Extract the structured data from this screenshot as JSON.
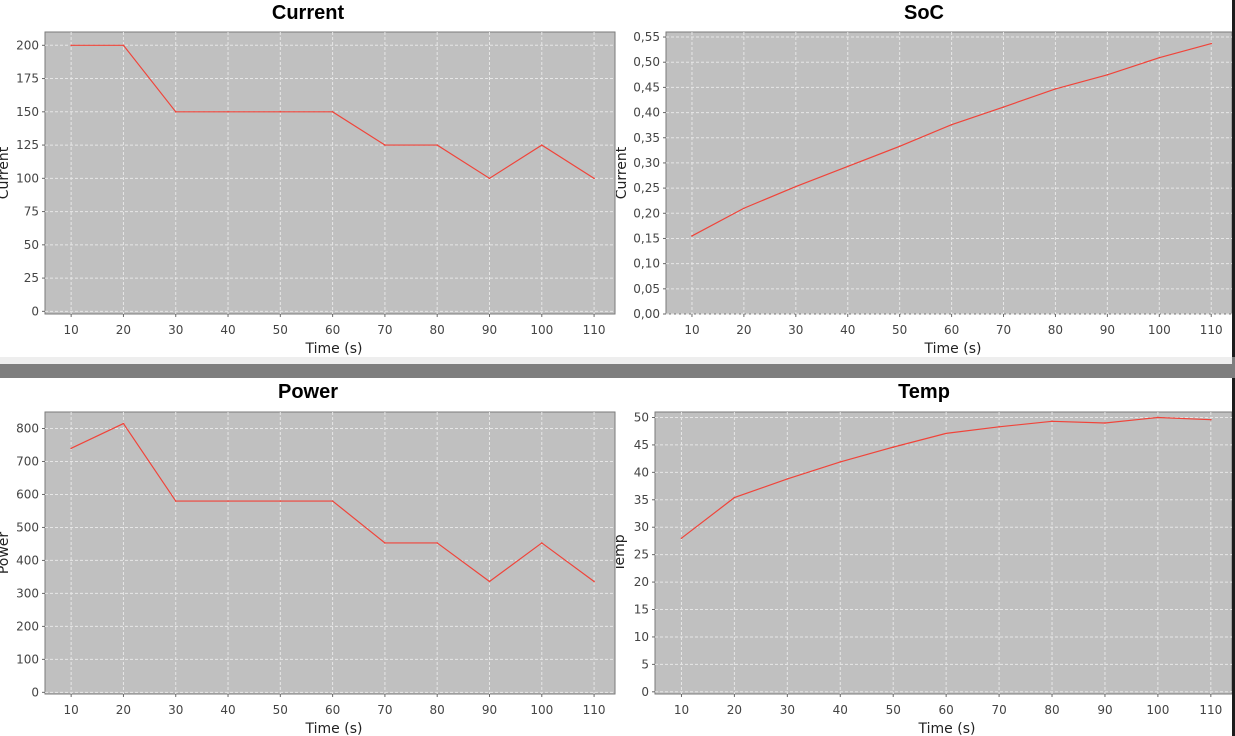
{
  "chart_data": [
    {
      "type": "line",
      "title": "Current",
      "xlabel": "Time (s)",
      "ylabel": "Current",
      "xlim": [
        5,
        114
      ],
      "ylim": [
        -2,
        210
      ],
      "xticks": [
        10,
        20,
        30,
        40,
        50,
        60,
        70,
        80,
        90,
        100,
        110
      ],
      "yticks": [
        "0",
        "25",
        "50",
        "75",
        "100",
        "125",
        "150",
        "175",
        "200"
      ],
      "ytick_values": [
        0,
        25,
        50,
        75,
        100,
        125,
        150,
        175,
        200
      ],
      "grid": true,
      "series": [
        {
          "x": [
            10,
            20,
            30,
            40,
            50,
            60,
            70,
            80,
            90,
            100,
            110
          ],
          "y": [
            200,
            200,
            150,
            150,
            150,
            150,
            125,
            125,
            100,
            125,
            100
          ]
        }
      ]
    },
    {
      "type": "line",
      "title": "SoC",
      "xlabel": "Time (s)",
      "ylabel": "Current",
      "xlim": [
        5,
        114
      ],
      "ylim": [
        0,
        0.56
      ],
      "xticks": [
        10,
        20,
        30,
        40,
        50,
        60,
        70,
        80,
        90,
        100,
        110
      ],
      "yticks": [
        "0,00",
        "0,05",
        "0,10",
        "0,15",
        "0,20",
        "0,25",
        "0,30",
        "0,35",
        "0,40",
        "0,45",
        "0,50",
        "0,55"
      ],
      "ytick_values": [
        0,
        0.05,
        0.1,
        0.15,
        0.2,
        0.25,
        0.3,
        0.35,
        0.4,
        0.45,
        0.5,
        0.55
      ],
      "grid": true,
      "series": [
        {
          "x": [
            10,
            20,
            30,
            40,
            50,
            60,
            70,
            80,
            90,
            100,
            110
          ],
          "y": [
            0.155,
            0.21,
            0.253,
            0.293,
            0.333,
            0.376,
            0.411,
            0.447,
            0.475,
            0.509,
            0.537
          ]
        }
      ]
    },
    {
      "type": "line",
      "title": "Power",
      "xlabel": "Time (s)",
      "ylabel": "Power",
      "xlim": [
        5,
        114
      ],
      "ylim": [
        -5,
        850
      ],
      "xticks": [
        10,
        20,
        30,
        40,
        50,
        60,
        70,
        80,
        90,
        100,
        110
      ],
      "yticks": [
        "0",
        "100",
        "200",
        "300",
        "400",
        "500",
        "600",
        "700",
        "800"
      ],
      "ytick_values": [
        0,
        100,
        200,
        300,
        400,
        500,
        600,
        700,
        800
      ],
      "grid": true,
      "series": [
        {
          "x": [
            10,
            20,
            30,
            40,
            50,
            60,
            70,
            80,
            90,
            100,
            110
          ],
          "y": [
            740,
            815,
            580,
            580,
            580,
            580,
            453,
            453,
            336,
            453,
            336
          ]
        }
      ]
    },
    {
      "type": "line",
      "title": "Temp",
      "xlabel": "Time (s)",
      "ylabel": "Temp",
      "xlim": [
        5,
        114
      ],
      "ylim": [
        -0.4,
        51
      ],
      "xticks": [
        10,
        20,
        30,
        40,
        50,
        60,
        70,
        80,
        90,
        100,
        110
      ],
      "yticks": [
        "0",
        "5",
        "10",
        "15",
        "20",
        "25",
        "30",
        "35",
        "40",
        "45",
        "50"
      ],
      "ytick_values": [
        0,
        5,
        10,
        15,
        20,
        25,
        30,
        35,
        40,
        45,
        50
      ],
      "grid": true,
      "series": [
        {
          "x": [
            10,
            20,
            30,
            40,
            50,
            60,
            70,
            80,
            90,
            100,
            110
          ],
          "y": [
            28,
            35.4,
            38.8,
            41.9,
            44.6,
            47.1,
            48.3,
            49.3,
            49.0,
            50.0,
            49.6
          ]
        }
      ]
    }
  ],
  "colors": {
    "plot_background": "#c0c0c0",
    "grid": "#e6e6e6",
    "series_line": "#f0443a",
    "frame": "#7a7a7a"
  }
}
